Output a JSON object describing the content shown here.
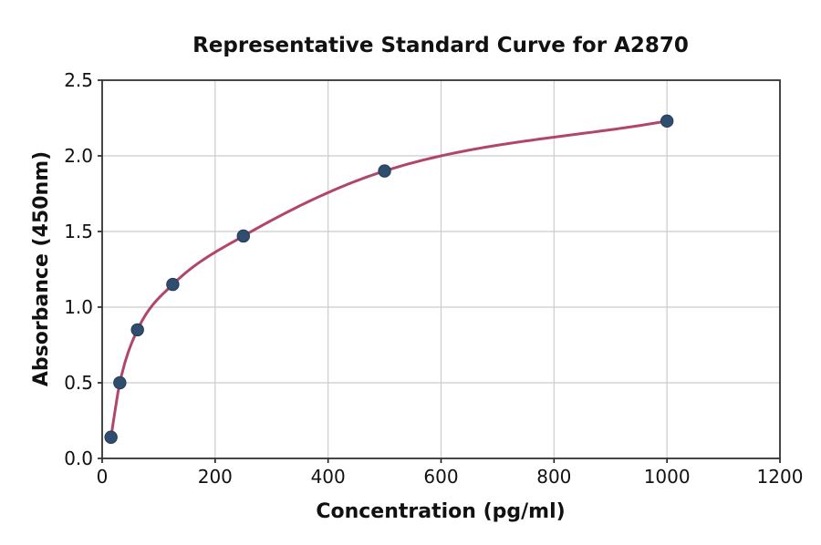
{
  "figure": {
    "background": "#ffffff"
  },
  "chart_data": {
    "type": "scatter",
    "title": "Representative Standard Curve for A2870",
    "xlabel": "Concentration (pg/ml)",
    "ylabel": "Absorbance (450nm)",
    "xlim": [
      0,
      1200
    ],
    "ylim": [
      0,
      2.5
    ],
    "x_ticks": [
      0,
      200,
      400,
      600,
      800,
      1000,
      1200
    ],
    "x_tick_labels": [
      "0",
      "200",
      "400",
      "600",
      "800",
      "1000",
      "1200"
    ],
    "y_ticks": [
      0,
      0.5,
      1,
      1.5,
      2,
      2.5
    ],
    "y_tick_labels": [
      "0.0",
      "0.5",
      "1.0",
      "1.5",
      "2.0",
      "2.5"
    ],
    "grid": true,
    "grid_color": "#cccccc",
    "spine_color": "#333333",
    "tick_color": "#1a1a1a",
    "legend": "none",
    "series": [
      {
        "name": "standard-curve",
        "kind": "scatter-with-fitted-line",
        "x": [
          15.6,
          31.25,
          62.5,
          125,
          250,
          500,
          1000
        ],
        "y": [
          0.14,
          0.5,
          0.85,
          1.15,
          1.47,
          1.9,
          2.23
        ],
        "marker_color": "#2f4d6e",
        "marker_edge_color": "#243c57",
        "marker_radius": 6.7,
        "line_color": "#b2456a"
      }
    ]
  }
}
